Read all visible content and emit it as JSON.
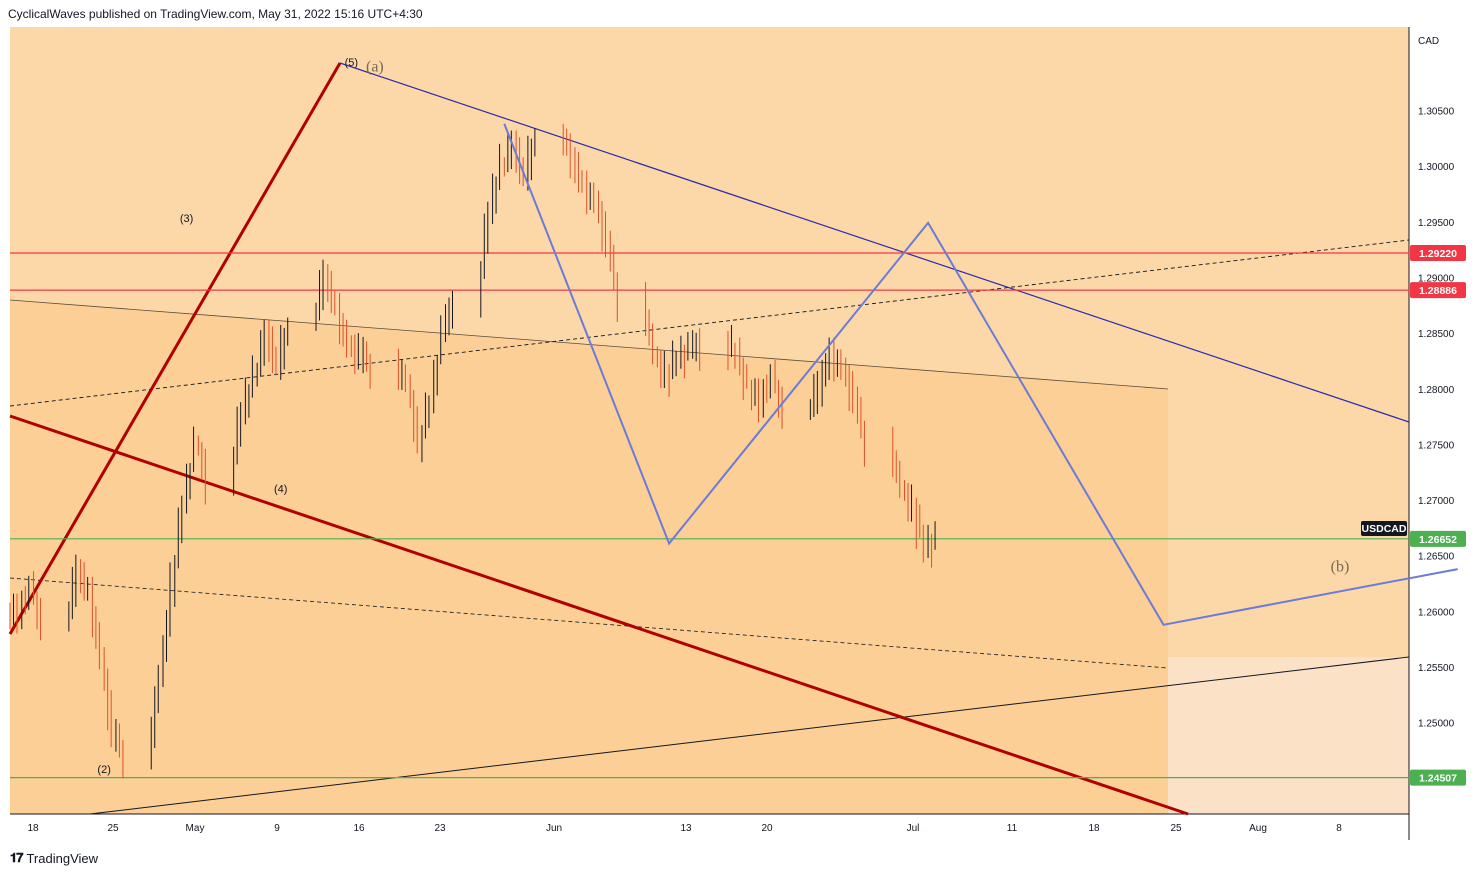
{
  "header": {
    "text": "CyclicalWaves published on TradingView.com, May 31, 2022 15:16 UTC+4:30"
  },
  "footer": {
    "brand": "TradingView",
    "logo_icon": "tradingview-logo-icon"
  },
  "colors": {
    "background": "#fcd8a8",
    "zone": "#fbcf96",
    "future_zone": "#fbe2c7",
    "resistance": "#f23645",
    "support": "#4caf50",
    "trend_red": "#b00000",
    "projection": "#6b7bd6",
    "channel": "#2b2ba8",
    "candle_up": "#131722",
    "candle_down": "#e0502a"
  },
  "chart_data": {
    "type": "line",
    "symbol": "USDCAD",
    "currency": "CAD",
    "ylim": [
      1.2418,
      1.3125
    ],
    "y_ticks": [
      "1.30500",
      "1.30000",
      "1.29500",
      "1.29000",
      "1.28500",
      "1.28000",
      "1.27500",
      "1.27000",
      "1.26500",
      "1.26000",
      "1.25500",
      "1.25000"
    ],
    "x_ticks": [
      "18",
      "25",
      "May",
      "9",
      "16",
      "23",
      "Jun",
      "13",
      "20",
      "Jul",
      "11",
      "18",
      "25",
      "Aug",
      "8"
    ],
    "price_levels": [
      {
        "label": "1.29220",
        "value": 1.2922,
        "kind": "resistance"
      },
      {
        "label": "1.28886",
        "value": 1.28886,
        "kind": "resistance"
      },
      {
        "label": "1.26652",
        "value": 1.26652,
        "kind": "current"
      },
      {
        "label": "1.24507",
        "value": 1.24507,
        "kind": "support"
      }
    ],
    "symbol_tag": "USDCAD",
    "wave_labels": [
      {
        "text": "(2)",
        "date": "2022-04-21",
        "price": 1.2455
      },
      {
        "text": "(3)",
        "date": "2022-04-28",
        "price": 1.295
      },
      {
        "text": "(4)",
        "date": "2022-05-06",
        "price": 1.2707
      },
      {
        "text": "(5)",
        "date": "2022-05-12",
        "price": 1.309
      },
      {
        "text": "(a)",
        "date": "2022-05-14",
        "price": 1.3085,
        "style": "large"
      },
      {
        "text": "(b)",
        "date": "2022-08-04",
        "price": 1.2636,
        "style": "large"
      }
    ],
    "projection_path": [
      {
        "date": "2022-05-25",
        "price": 1.3038
      },
      {
        "date": "2022-06-08",
        "price": 1.2661
      },
      {
        "date": "2022-06-30",
        "price": 1.2949
      },
      {
        "date": "2022-07-20",
        "price": 1.2588
      },
      {
        "date": "2022-08-14",
        "price": 1.2638
      }
    ],
    "series": [
      {
        "name": "USDCAD",
        "ohlc_from": "2022-04-13",
        "close": [
          1.26,
          1.262,
          1.259,
          1.2635,
          1.2615,
          1.256,
          1.249,
          1.247,
          1.254,
          1.262,
          1.27,
          1.275,
          1.272,
          1.278,
          1.281,
          1.285,
          1.282,
          1.286,
          1.29,
          1.287,
          1.284,
          1.283,
          1.282,
          1.2805,
          1.275,
          1.279,
          1.285,
          1.288,
          1.296,
          1.3,
          1.302,
          1.299,
          1.303,
          1.3005,
          1.298,
          1.297,
          1.293,
          1.288,
          1.283,
          1.281,
          1.283,
          1.2835,
          1.284,
          1.283,
          1.28,
          1.279,
          1.281,
          1.278,
          1.28,
          1.283,
          1.282,
          1.279,
          1.275,
          1.271,
          1.269,
          1.266,
          1.2665
        ]
      }
    ]
  }
}
